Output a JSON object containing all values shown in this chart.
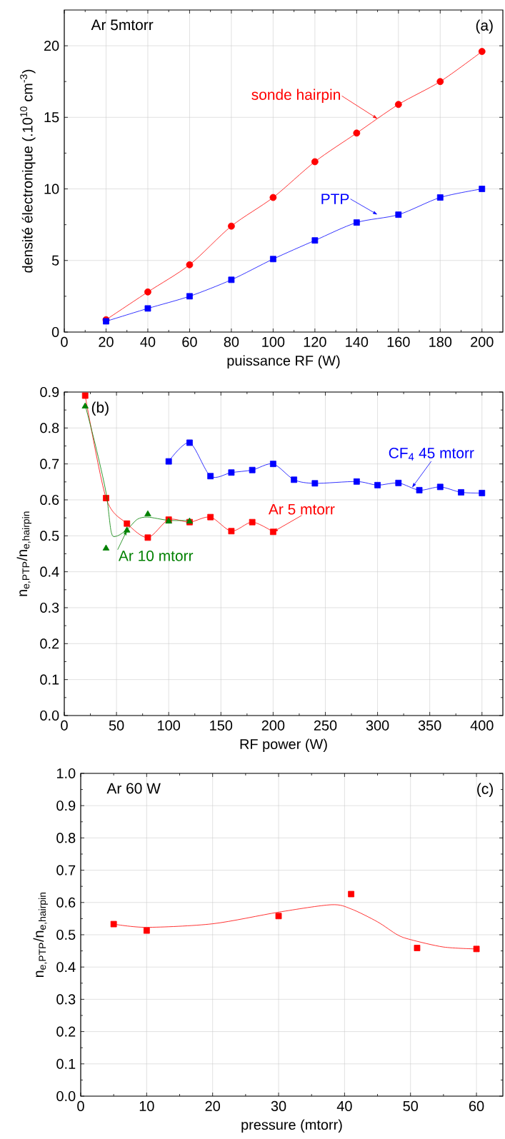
{
  "chart_data": [
    {
      "type": "line",
      "xlabel": "puissance RF (W)",
      "ylabel": "densité électronique (.10$^{10}$ cm$^{-3}$)",
      "x": [
        20,
        40,
        60,
        80,
        100,
        120,
        140,
        160,
        180,
        200
      ],
      "series": [
        {
          "color": "#ff0000",
          "marker": "circle",
          "values": [
            0.86,
            2.8,
            4.7,
            7.4,
            9.4,
            11.9,
            13.9,
            15.9,
            17.5,
            19.6
          ]
        },
        {
          "color": "#0000ff",
          "marker": "square",
          "values": [
            0.75,
            1.65,
            2.5,
            3.65,
            5.1,
            6.4,
            7.65,
            8.2,
            9.4,
            10.0
          ]
        }
      ],
      "xlim": [
        0,
        210
      ],
      "ylim": [
        0,
        22.5
      ],
      "xticks": [
        0,
        20,
        40,
        60,
        80,
        100,
        120,
        140,
        160,
        180,
        200
      ],
      "yticks": [
        0,
        5,
        10,
        15,
        20
      ],
      "grid": true,
      "annotations": [
        "Ar 5mtorr",
        "(a)",
        {
          "text": "sonde hairpin",
          "x": 150,
          "y": 14.9
        },
        {
          "text": "PTP",
          "x": 150,
          "y": 8.2
        }
      ]
    },
    {
      "type": "line",
      "xlabel": "RF power (W)",
      "ylabel": "n$_{e,PTP}$/n$_{e,hairpin}$",
      "series": [
        {
          "color": "#ff0000",
          "marker": "square",
          "x": [
            20,
            40,
            60,
            80,
            100,
            120,
            140,
            160,
            180,
            200
          ],
          "values": [
            0.89,
            0.605,
            0.534,
            0.495,
            0.545,
            0.538,
            0.552,
            0.513,
            0.538,
            0.511
          ]
        },
        {
          "type": "scatter",
          "color": "#008000",
          "marker": "triangle",
          "x": [
            20,
            40,
            60,
            80,
            100,
            120
          ],
          "values": [
            0.86,
            0.465,
            0.515,
            0.56,
            0.54,
            0.54
          ]
        },
        {
          "color": "#008000",
          "marker": "none",
          "x": [
            20,
            30,
            40,
            45,
            50,
            60,
            70,
            80,
            100,
            120
          ],
          "values": [
            0.864,
            0.75,
            0.62,
            0.51,
            0.499,
            0.517,
            0.546,
            0.552,
            0.543,
            0.543
          ]
        },
        {
          "color": "#0000ff",
          "marker": "square",
          "x": [
            100,
            120,
            140,
            160,
            180,
            200,
            220,
            240,
            280,
            300,
            320,
            340,
            360,
            380,
            400
          ],
          "values": [
            0.707,
            0.759,
            0.666,
            0.676,
            0.683,
            0.7,
            0.656,
            0.646,
            0.651,
            0.641,
            0.647,
            0.627,
            0.636,
            0.621,
            0.619
          ]
        }
      ],
      "xlim": [
        0,
        420
      ],
      "ylim": [
        0,
        0.9
      ],
      "xticks": [
        0,
        50,
        100,
        150,
        200,
        250,
        300,
        350,
        400
      ],
      "yticks": [
        {
          "value": 0,
          "label": "0.0"
        },
        {
          "value": 0.1,
          "label": "0.1"
        },
        {
          "value": 0.2,
          "label": "0.2"
        },
        {
          "value": 0.3,
          "label": "0.3"
        },
        {
          "value": 0.4,
          "label": "0.4"
        },
        {
          "value": 0.5,
          "label": "0.5"
        },
        {
          "value": 0.6,
          "label": "0.6"
        },
        {
          "value": 0.7,
          "label": "0.7"
        },
        {
          "value": 0.8,
          "label": "0.8"
        },
        {
          "value": 0.9,
          "label": "0.9"
        }
      ],
      "grid": true,
      "annotations": [
        "(b)",
        {
          "text": "CF$_{4}$ 45 mtorr",
          "x": 333,
          "y": 0.634
        },
        {
          "text": "Ar 5 mtorr",
          "x": 200,
          "y": 0.511
        },
        {
          "text": "Ar 10 mtorr",
          "x": 60,
          "y": 0.515
        }
      ]
    },
    {
      "type": "scatter",
      "xlabel": "pressure (mtorr)",
      "ylabel": "n$_{e,PTP}$/n$_{e,hairpin}$",
      "series": [
        {
          "color": "#ff0000",
          "marker": "square",
          "x": [
            5,
            10,
            30,
            41,
            51,
            60
          ],
          "values": [
            0.533,
            0.513,
            0.558,
            0.626,
            0.459,
            0.456
          ]
        },
        {
          "type": "line",
          "color": "#ff0000",
          "marker": "none",
          "x": [
            5,
            10,
            20,
            30,
            38,
            41,
            45,
            48,
            50,
            55,
            60
          ],
          "values": [
            0.533,
            0.523,
            0.534,
            0.57,
            0.593,
            0.58,
            0.54,
            0.5,
            0.485,
            0.462,
            0.456
          ]
        }
      ],
      "xlim": [
        0,
        64
      ],
      "ylim": [
        0,
        1.0
      ],
      "xticks": [
        0,
        10,
        20,
        30,
        40,
        50,
        60
      ],
      "yticks": [
        {
          "value": 0,
          "label": "0.0"
        },
        {
          "value": 0.1,
          "label": "0.1"
        },
        {
          "value": 0.2,
          "label": "0.2"
        },
        {
          "value": 0.3,
          "label": "0.3"
        },
        {
          "value": 0.4,
          "label": "0.4"
        },
        {
          "value": 0.5,
          "label": "0.5"
        },
        {
          "value": 0.6,
          "label": "0.6"
        },
        {
          "value": 0.7,
          "label": "0.7"
        },
        {
          "value": 0.8,
          "label": "0.8"
        },
        {
          "value": 0.9,
          "label": "0.9"
        },
        {
          "value": 1.0,
          "label": "1.0"
        }
      ],
      "grid": true,
      "annotations": [
        "Ar  60 W",
        "(c)"
      ]
    }
  ]
}
